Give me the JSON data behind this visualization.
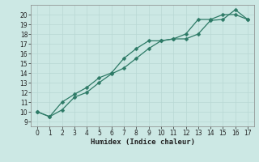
{
  "x": [
    0,
    1,
    2,
    3,
    4,
    5,
    6,
    7,
    8,
    9,
    10,
    11,
    12,
    13,
    14,
    15,
    16,
    17
  ],
  "y_curve": [
    10.0,
    9.5,
    10.2,
    11.5,
    12.0,
    13.0,
    13.9,
    14.5,
    15.5,
    16.5,
    17.3,
    17.5,
    17.5,
    18.0,
    19.4,
    19.5,
    20.5,
    19.5
  ],
  "y_line": [
    10.0,
    9.5,
    11.0,
    11.8,
    12.5,
    13.5,
    14.0,
    15.5,
    16.5,
    17.3,
    17.3,
    17.5,
    18.0,
    19.5,
    19.5,
    20.0,
    20.0,
    19.5
  ],
  "xlabel": "Humidex (Indice chaleur)",
  "xlim": [
    -0.5,
    17.5
  ],
  "ylim": [
    8.5,
    21.0
  ],
  "yticks": [
    9,
    10,
    11,
    12,
    13,
    14,
    15,
    16,
    17,
    18,
    19,
    20
  ],
  "xticks": [
    0,
    1,
    2,
    3,
    4,
    5,
    6,
    7,
    8,
    9,
    10,
    11,
    12,
    13,
    14,
    15,
    16,
    17
  ],
  "line_color": "#2d7a66",
  "bg_color": "#cce8e4",
  "grid_color": "#b8d8d4",
  "tick_fontsize": 5.5,
  "xlabel_fontsize": 6.5,
  "marker_size": 2.5,
  "linewidth": 0.9
}
